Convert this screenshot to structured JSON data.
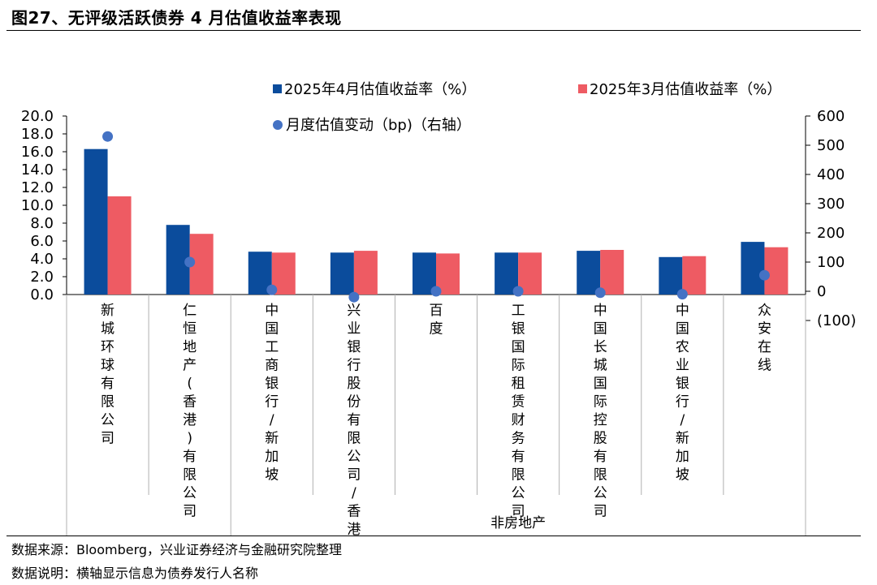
{
  "title": "图27、无评级活跃债券 4 月估值收益率表现",
  "footer": {
    "source": "数据来源：Bloomberg，兴业证券经济与金融研究院整理",
    "note": "数据说明：横轴显示信息为债券发行人名称"
  },
  "chart_data": {
    "type": "bar",
    "categories": [
      "新城环球有限公司",
      "仁恒地产(香港)有限公司",
      "中国工商银行/新加坡",
      "兴业银行股份有限公司/香港",
      "百度",
      "工银国际租赁财务有限公司",
      "中国长城国际控股有限公司",
      "中国农业银行/新加坡",
      "众安在线"
    ],
    "group_label": "非房地产",
    "series": [
      {
        "name": "2025年4月估值收益率（%）",
        "color": "#0b4c9c",
        "axis": "left",
        "values": [
          16.3,
          7.8,
          4.8,
          4.7,
          4.7,
          4.7,
          4.9,
          4.2,
          5.9
        ]
      },
      {
        "name": "2025年3月估值收益率（%）",
        "color": "#ee5b63",
        "axis": "left",
        "values": [
          11.0,
          6.8,
          4.7,
          4.9,
          4.6,
          4.7,
          5.0,
          4.3,
          5.3
        ]
      },
      {
        "name": "月度估值变动（bp)（右轴）",
        "color": "#4472c4",
        "axis": "right",
        "type": "scatter",
        "values": [
          530,
          100,
          5,
          -20,
          0,
          0,
          -5,
          -10,
          55
        ]
      }
    ],
    "y_left": {
      "ylim": [
        0,
        20
      ],
      "ticks": [
        "0.0",
        "2.0",
        "4.0",
        "6.0",
        "8.0",
        "10.0",
        "12.0",
        "14.0",
        "16.0",
        "18.0",
        "20.0"
      ]
    },
    "y_right": {
      "ylim": [
        -100,
        600
      ],
      "ticks": [
        "(100)",
        "0",
        "100",
        "200",
        "300",
        "400",
        "500",
        "600"
      ],
      "negative_color": "#e02020"
    }
  }
}
